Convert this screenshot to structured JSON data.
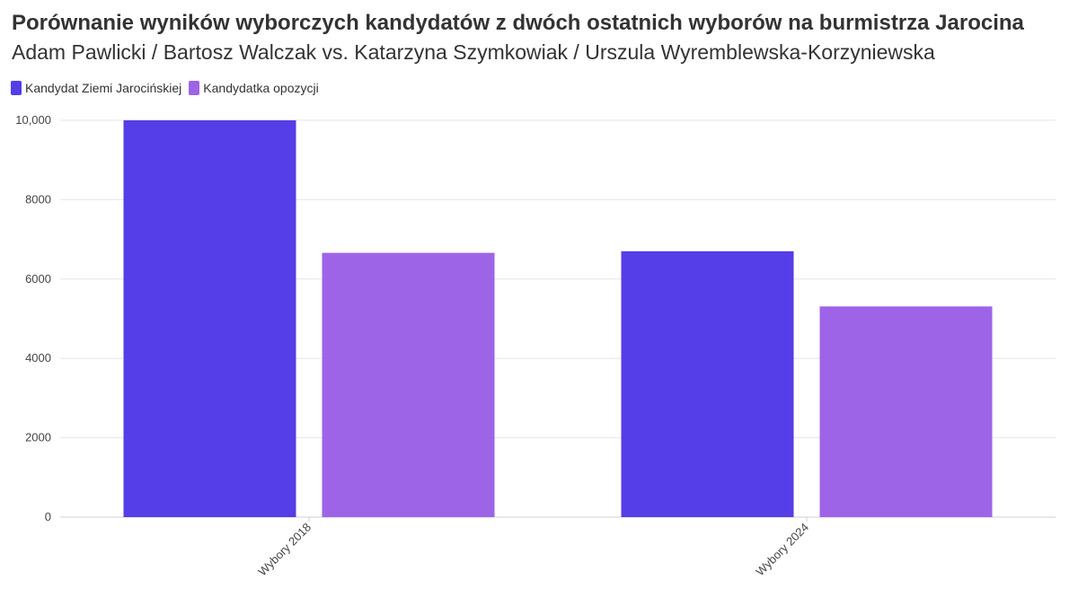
{
  "chart_data": {
    "type": "bar",
    "title": "Porównanie wyników wyborczych kandydatów z dwóch ostatnich wyborów na burmistrza Jarocina",
    "subtitle": "Adam Pawlicki / Bartosz Walczak vs. Katarzyna Szymkowiak / Urszula Wyremblewska-Korzyniewska",
    "categories": [
      "Wybory 2018",
      "Wybory 2024"
    ],
    "series": [
      {
        "name": "Kandydat Ziemi Jarocińskiej",
        "color": "#553de8",
        "values": [
          10000,
          6700
        ]
      },
      {
        "name": "Kandydatka opozycji",
        "color": "#9e64e8",
        "values": [
          6660,
          5310
        ]
      }
    ],
    "y_ticks": [
      {
        "value": 0,
        "label": "0"
      },
      {
        "value": 2000,
        "label": "2000"
      },
      {
        "value": 4000,
        "label": "4000"
      },
      {
        "value": 6000,
        "label": "6000"
      },
      {
        "value": 8000,
        "label": "8000"
      },
      {
        "value": 10000,
        "label": "10,000"
      }
    ],
    "ylim": [
      0,
      10000
    ],
    "grid": true,
    "legend_position": "top-left"
  }
}
